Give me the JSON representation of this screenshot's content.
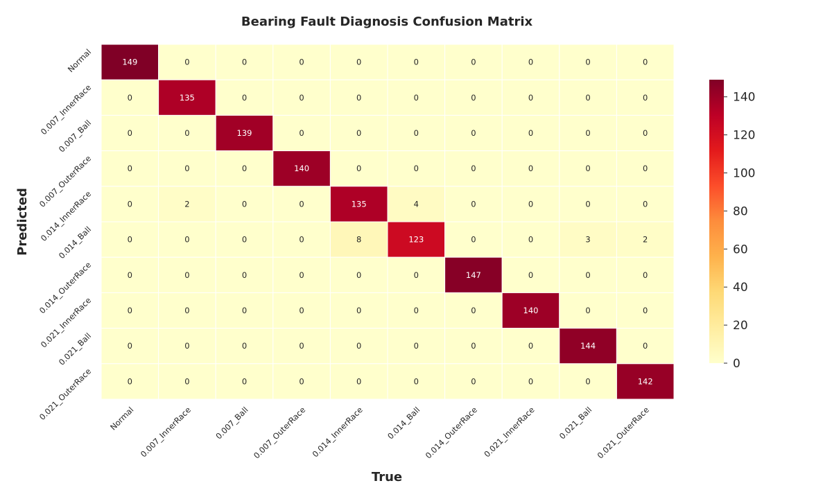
{
  "chart_data": {
    "type": "heatmap",
    "title": "Bearing Fault Diagnosis Confusion Matrix",
    "xlabel": "True",
    "ylabel": "Predicted",
    "x_categories": [
      "Normal",
      "0.007_InnerRace",
      "0.007_Ball",
      "0.007_OuterRace",
      "0.014_InnerRace",
      "0.014_Ball",
      "0.014_OuterRace",
      "0.021_InnerRace",
      "0.021_Ball",
      "0.021_OuterRace"
    ],
    "y_categories": [
      "Normal",
      "0.007_InnerRace",
      "0.007_Ball",
      "0.007_OuterRace",
      "0.014_InnerRace",
      "0.014_Ball",
      "0.014_OuterRace",
      "0.021_InnerRace",
      "0.021_Ball",
      "0.021_OuterRace"
    ],
    "values": [
      [
        149,
        0,
        0,
        0,
        0,
        0,
        0,
        0,
        0,
        0
      ],
      [
        0,
        135,
        0,
        0,
        0,
        0,
        0,
        0,
        0,
        0
      ],
      [
        0,
        0,
        139,
        0,
        0,
        0,
        0,
        0,
        0,
        0
      ],
      [
        0,
        0,
        0,
        140,
        0,
        0,
        0,
        0,
        0,
        0
      ],
      [
        0,
        2,
        0,
        0,
        135,
        4,
        0,
        0,
        0,
        0
      ],
      [
        0,
        0,
        0,
        0,
        8,
        123,
        0,
        0,
        3,
        2
      ],
      [
        0,
        0,
        0,
        0,
        0,
        0,
        147,
        0,
        0,
        0
      ],
      [
        0,
        0,
        0,
        0,
        0,
        0,
        0,
        140,
        0,
        0
      ],
      [
        0,
        0,
        0,
        0,
        0,
        0,
        0,
        0,
        144,
        0
      ],
      [
        0,
        0,
        0,
        0,
        0,
        0,
        0,
        0,
        0,
        142
      ]
    ],
    "colormap": "YlOrRd",
    "value_range": [
      0,
      149
    ],
    "colorbar_ticks": [
      "0",
      "20",
      "40",
      "60",
      "80",
      "100",
      "120",
      "140"
    ],
    "grid": false,
    "legend": "colorbar-right"
  }
}
